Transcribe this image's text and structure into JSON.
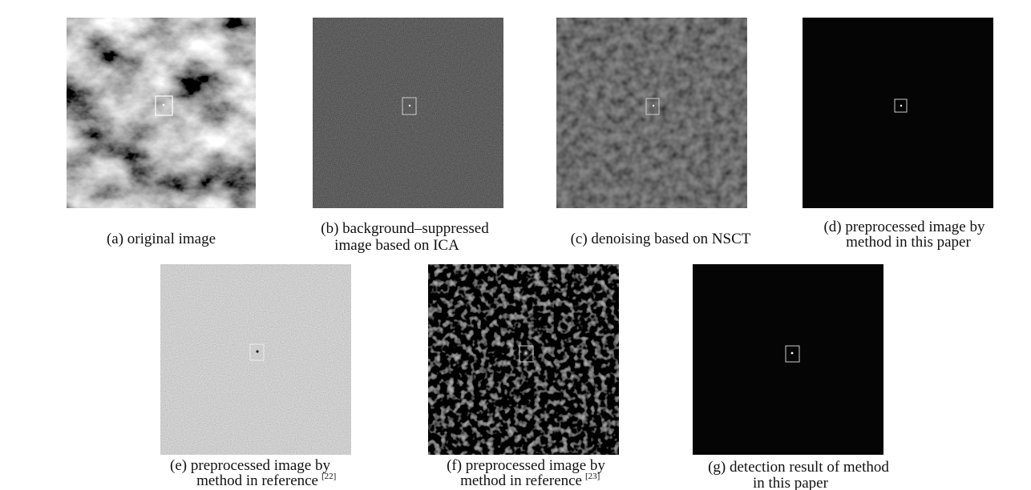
{
  "panels": [
    {
      "caption": [
        "(a) original image"
      ]
    },
    {
      "caption": [
        "(b) background–suppressed",
        "image based on ICA"
      ]
    },
    {
      "caption": [
        "(c) denoising based on NSCT"
      ]
    },
    {
      "caption": [
        "(d) preprocessed image by",
        "method in this paper"
      ]
    },
    {
      "caption": [
        "(e) preprocessed image by",
        "method in reference"
      ],
      "superscript": "[22]"
    },
    {
      "caption": [
        "(f) preprocessed image by",
        "method in reference"
      ],
      "superscript": "[23]"
    },
    {
      "caption": [
        "(g) detection result of method",
        "in this paper"
      ]
    }
  ]
}
